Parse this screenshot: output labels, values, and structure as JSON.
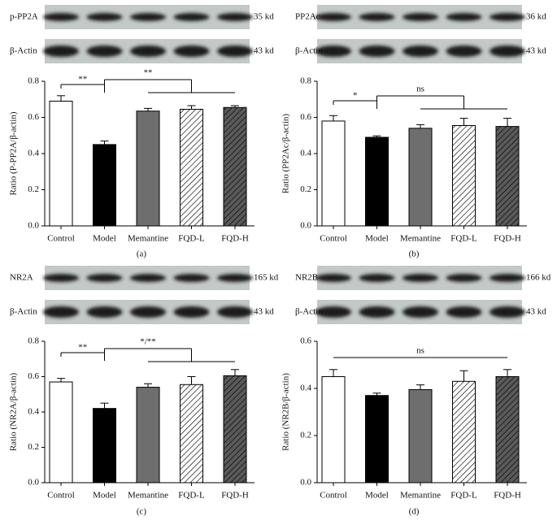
{
  "chart_data": [
    {
      "type": "bar",
      "caption": "(a)",
      "y_label": "Ratio (P-PP2A/β-actin)",
      "blots": [
        {
          "label": "p-PP2A",
          "size": "35 kd"
        },
        {
          "label": "β-Actin",
          "size": "43 kd"
        }
      ],
      "categories": [
        "Control",
        "Model",
        "Memantine",
        "FQD-L",
        "FQD-H"
      ],
      "values": [
        0.69,
        0.45,
        0.635,
        0.645,
        0.655
      ],
      "errors": [
        0.03,
        0.02,
        0.015,
        0.02,
        0.01
      ],
      "colors": [
        "#ffffff",
        "#000000",
        "#6e6e6e",
        "#ffffff",
        "#5a5a5a"
      ],
      "hatch": [
        false,
        false,
        false,
        true,
        true
      ],
      "annotations": [
        "**",
        "**"
      ],
      "ylim": [
        0,
        0.8
      ],
      "yticks": [
        {
          "value": 0,
          "label": "0.0"
        },
        0.2,
        0.4,
        0.6,
        0.8
      ]
    },
    {
      "type": "bar",
      "caption": "(b)",
      "y_label": "Ratio (PP2Ac/β-actin)",
      "blots": [
        {
          "label": "PP2Ac",
          "size": "36 kd"
        },
        {
          "label": "β-Actin",
          "size": "43 kd"
        }
      ],
      "categories": [
        "Control",
        "Model",
        "Memantine",
        "FQD-L",
        "FQD-H"
      ],
      "values": [
        0.58,
        0.49,
        0.54,
        0.555,
        0.55
      ],
      "errors": [
        0.03,
        0.008,
        0.02,
        0.04,
        0.045
      ],
      "colors": [
        "#ffffff",
        "#000000",
        "#6e6e6e",
        "#ffffff",
        "#5a5a5a"
      ],
      "hatch": [
        false,
        false,
        false,
        true,
        true
      ],
      "annotations": [
        "*",
        "ns"
      ],
      "ylim": [
        0,
        0.8
      ],
      "yticks": [
        {
          "value": 0,
          "label": "0.0"
        },
        0.2,
        0.4,
        0.6,
        0.8
      ]
    },
    {
      "type": "bar",
      "caption": "(c)",
      "y_label": "Ratio (NR2A/β-actin)",
      "blots": [
        {
          "label": "NR2A",
          "size": "165 kd"
        },
        {
          "label": "β-Actin",
          "size": "43 kd"
        }
      ],
      "categories": [
        "Control",
        "Model",
        "Memantine",
        "FQD-L",
        "FQD-H"
      ],
      "values": [
        0.57,
        0.42,
        0.54,
        0.555,
        0.605
      ],
      "errors": [
        0.02,
        0.03,
        0.02,
        0.045,
        0.035
      ],
      "colors": [
        "#ffffff",
        "#000000",
        "#6e6e6e",
        "#ffffff",
        "#5a5a5a"
      ],
      "hatch": [
        false,
        false,
        false,
        true,
        true
      ],
      "annotations": [
        "**",
        "*/**"
      ],
      "ylim": [
        0,
        0.8
      ],
      "yticks": [
        {
          "value": 0,
          "label": "0.0"
        },
        0.2,
        0.4,
        0.6,
        0.8
      ]
    },
    {
      "type": "bar",
      "caption": "(d)",
      "y_label": "Ratio (NR2B/β-actin)",
      "blots": [
        {
          "label": "NR2B",
          "size": "166 kd"
        },
        {
          "label": "β-Actin",
          "size": "43 kd"
        }
      ],
      "categories": [
        "Control",
        "Model",
        "Memantine",
        "FQD-L",
        "FQD-H"
      ],
      "values": [
        0.45,
        0.37,
        0.395,
        0.43,
        0.45
      ],
      "errors": [
        0.03,
        0.01,
        0.02,
        0.045,
        0.03
      ],
      "colors": [
        "#ffffff",
        "#000000",
        "#6e6e6e",
        "#ffffff",
        "#5a5a5a"
      ],
      "hatch": [
        false,
        false,
        false,
        true,
        true
      ],
      "annotations": [
        "ns"
      ],
      "ylim": [
        0,
        0.6
      ],
      "yticks": [
        {
          "value": 0,
          "label": "0.0"
        },
        0.2,
        0.4,
        0.6
      ]
    }
  ]
}
